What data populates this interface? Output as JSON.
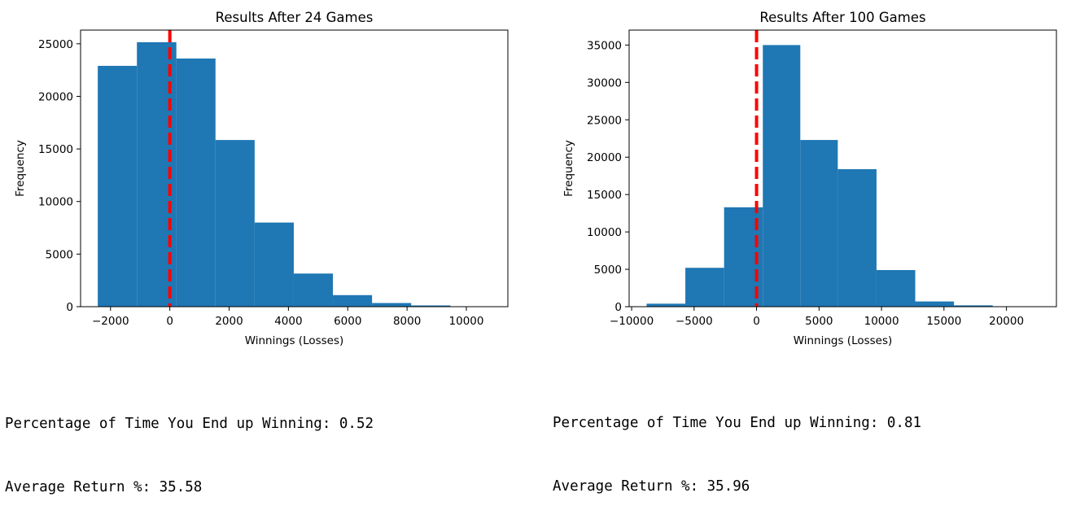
{
  "chart_data": [
    {
      "type": "bar",
      "title": "Results After 24 Games",
      "xlabel": "Winnings (Losses)",
      "ylabel": "Frequency",
      "xlim": [
        -3010,
        11400
      ],
      "ylim": [
        0,
        26300
      ],
      "xticks": [
        -2000,
        0,
        2000,
        4000,
        6000,
        8000,
        10000
      ],
      "xtick_labels": [
        "−2000",
        "0",
        "2000",
        "4000",
        "6000",
        "8000",
        "10000"
      ],
      "yticks": [
        0,
        5000,
        10000,
        15000,
        20000,
        25000
      ],
      "ytick_labels": [
        "0",
        "5000",
        "10000",
        "15000",
        "20000",
        "25000"
      ],
      "bins": [
        {
          "x0": -2430,
          "x1": -1110,
          "value": 22900
        },
        {
          "x0": -1110,
          "x1": 220,
          "value": 25150
        },
        {
          "x0": 220,
          "x1": 1540,
          "value": 23600
        },
        {
          "x0": 1540,
          "x1": 2860,
          "value": 15850
        },
        {
          "x0": 2860,
          "x1": 4180,
          "value": 8000
        },
        {
          "x0": 4180,
          "x1": 5500,
          "value": 3150
        },
        {
          "x0": 5500,
          "x1": 6820,
          "value": 1100
        },
        {
          "x0": 6820,
          "x1": 8140,
          "value": 350
        },
        {
          "x0": 8140,
          "x1": 9460,
          "value": 120
        },
        {
          "x0": 9460,
          "x1": 10780,
          "value": 30
        }
      ],
      "color": "#1f77b4",
      "vline": {
        "x": 0,
        "color": "#ff0000",
        "style": "dashed"
      }
    },
    {
      "type": "bar",
      "title": "Results After 100 Games",
      "xlabel": "Winnings (Losses)",
      "ylabel": "Frequency",
      "xlim": [
        -10200,
        24000
      ],
      "ylim": [
        0,
        37000
      ],
      "xticks": [
        -10000,
        -5000,
        0,
        5000,
        10000,
        15000,
        20000
      ],
      "xtick_labels": [
        "−10000",
        "−5000",
        "0",
        "5000",
        "10000",
        "15000",
        "20000"
      ],
      "yticks": [
        0,
        5000,
        10000,
        15000,
        20000,
        25000,
        30000,
        35000
      ],
      "ytick_labels": [
        "0",
        "5000",
        "10000",
        "15000",
        "20000",
        "25000",
        "30000",
        "35000"
      ],
      "bins": [
        {
          "x0": -8800,
          "x1": -5700,
          "value": 400
        },
        {
          "x0": -5700,
          "x1": -2600,
          "value": 5200
        },
        {
          "x0": -2600,
          "x1": 500,
          "value": 13300
        },
        {
          "x0": 500,
          "x1": 3500,
          "value": 35000
        },
        {
          "x0": 3500,
          "x1": 6500,
          "value": 22300
        },
        {
          "x0": 6500,
          "x1": 9600,
          "value": 18400
        },
        {
          "x0": 9600,
          "x1": 12700,
          "value": 4900
        },
        {
          "x0": 12700,
          "x1": 15800,
          "value": 700
        },
        {
          "x0": 15800,
          "x1": 18900,
          "value": 180
        },
        {
          "x0": 18900,
          "x1": 22000,
          "value": 30
        }
      ],
      "color": "#1f77b4",
      "vline": {
        "x": 0,
        "color": "#ff0000",
        "style": "dashed"
      }
    }
  ],
  "outputs": [
    {
      "line1": "Percentage of Time You End up Winning: 0.52",
      "line2": "Average Return %: 35.58"
    },
    {
      "line1": "Percentage of Time You End up Winning: 0.81",
      "line2": "Average Return %: 35.96"
    }
  ]
}
